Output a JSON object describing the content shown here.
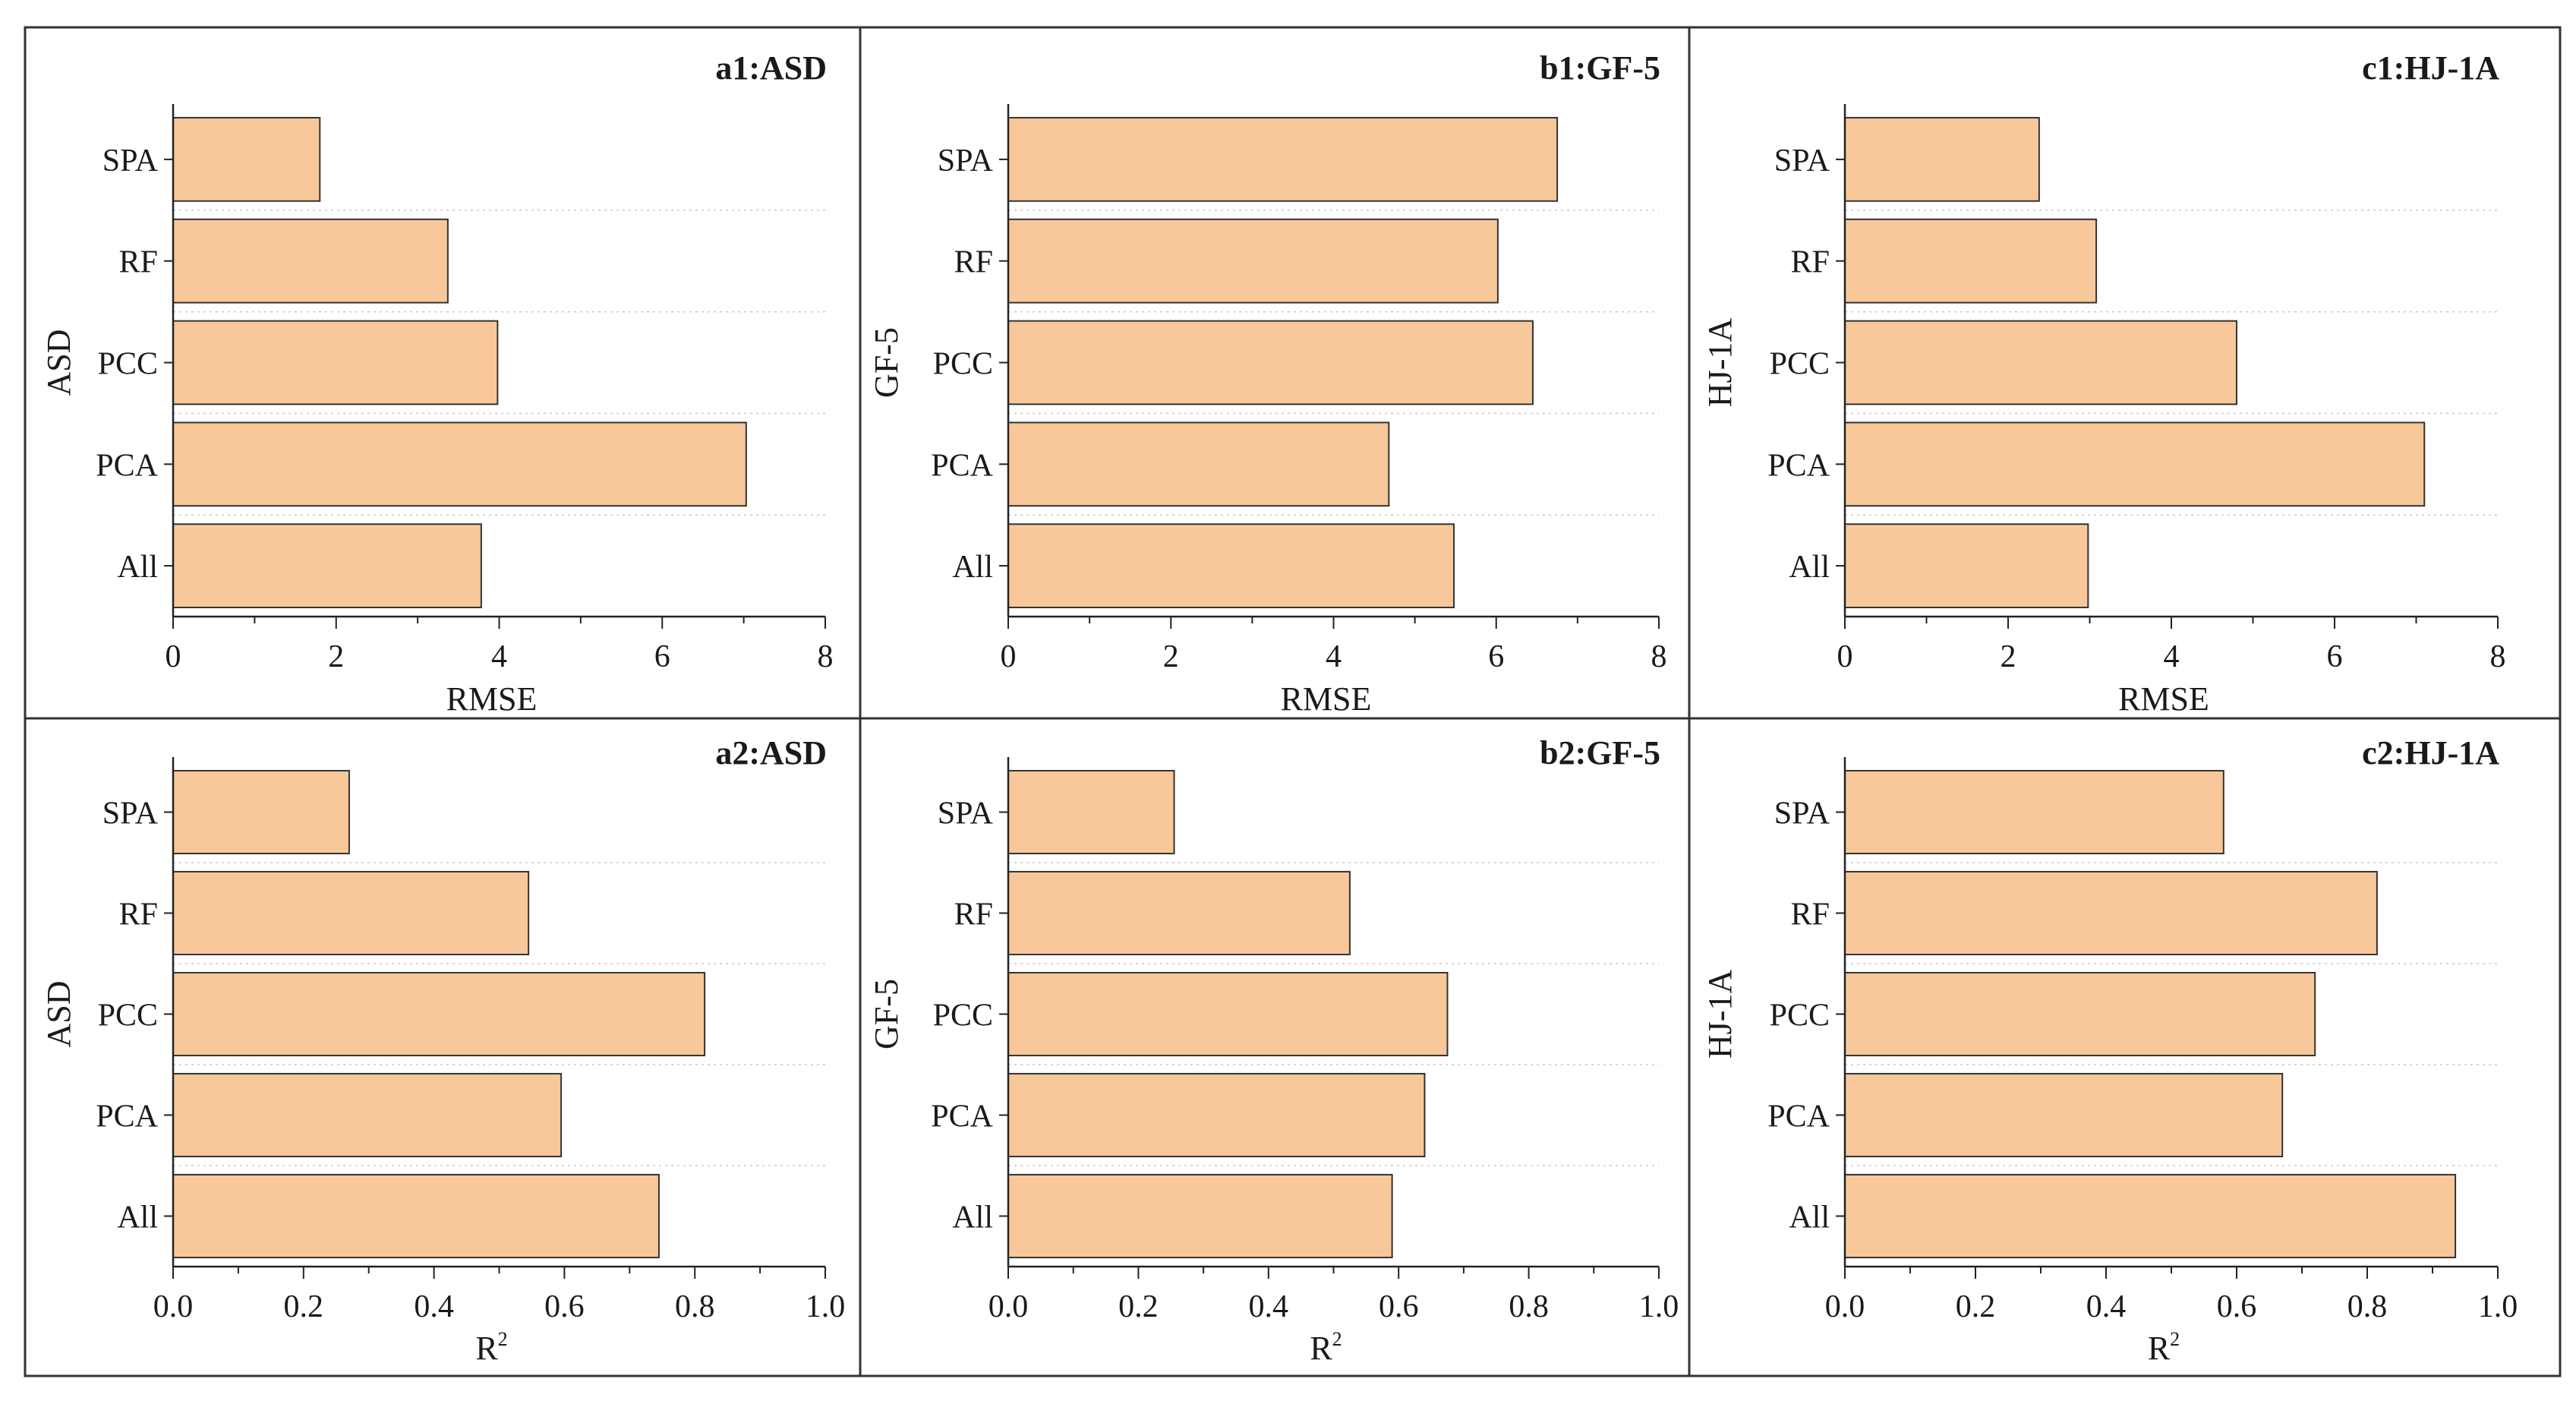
{
  "figure": {
    "bar_color": "#F8C89A",
    "bar_edge_color": "#333333",
    "frame_color": "#333333"
  },
  "chart_data": [
    {
      "id": "a1",
      "type": "bar",
      "orientation": "horizontal",
      "title": "a1:ASD",
      "xlabel": "RMSE",
      "ylabel": "ASD",
      "categories": [
        "SPA",
        "RF",
        "PCC",
        "PCA",
        "All"
      ],
      "values": [
        1.8,
        3.37,
        3.98,
        7.03,
        3.78
      ],
      "xlim": [
        0,
        8
      ],
      "xticks": [
        "0",
        "2",
        "4",
        "6",
        "8"
      ]
    },
    {
      "id": "b1",
      "type": "bar",
      "orientation": "horizontal",
      "title": "b1:GF-5",
      "xlabel": "RMSE",
      "ylabel": "GF-5",
      "categories": [
        "SPA",
        "RF",
        "PCC",
        "PCA",
        "All"
      ],
      "values": [
        6.75,
        6.02,
        6.45,
        4.68,
        5.48
      ],
      "xlim": [
        0,
        8
      ],
      "xticks": [
        "0",
        "2",
        "4",
        "6",
        "8"
      ]
    },
    {
      "id": "c1",
      "type": "bar",
      "orientation": "horizontal",
      "title": "c1:HJ-1A",
      "xlabel": "RMSE",
      "ylabel": "HJ-1A",
      "categories": [
        "SPA",
        "RF",
        "PCC",
        "PCA",
        "All"
      ],
      "values": [
        2.38,
        3.08,
        4.8,
        7.1,
        2.98
      ],
      "xlim": [
        0,
        8
      ],
      "xticks": [
        "0",
        "2",
        "4",
        "6",
        "8"
      ]
    },
    {
      "id": "a2",
      "type": "bar",
      "orientation": "horizontal",
      "title": "a2:ASD",
      "xlabel": "R",
      "xlabel_sup": "2",
      "ylabel": "ASD",
      "categories": [
        "SPA",
        "RF",
        "PCC",
        "PCA",
        "All"
      ],
      "values": [
        0.27,
        0.545,
        0.815,
        0.595,
        0.745
      ],
      "xlim": [
        0,
        1
      ],
      "xticks": [
        "0.0",
        "0.2",
        "0.4",
        "0.6",
        "0.8",
        "1.0"
      ]
    },
    {
      "id": "b2",
      "type": "bar",
      "orientation": "horizontal",
      "title": "b2:GF-5",
      "xlabel": "R",
      "xlabel_sup": "2",
      "ylabel": "GF-5",
      "categories": [
        "SPA",
        "RF",
        "PCC",
        "PCA",
        "All"
      ],
      "values": [
        0.255,
        0.525,
        0.675,
        0.64,
        0.59
      ],
      "xlim": [
        0,
        1
      ],
      "xticks": [
        "0.0",
        "0.2",
        "0.4",
        "0.6",
        "0.8",
        "1.0"
      ]
    },
    {
      "id": "c2",
      "type": "bar",
      "orientation": "horizontal",
      "title": "c2:HJ-1A",
      "xlabel": "R",
      "xlabel_sup": "2",
      "ylabel": "HJ-1A",
      "categories": [
        "SPA",
        "RF",
        "PCC",
        "PCA",
        "All"
      ],
      "values": [
        0.58,
        0.815,
        0.72,
        0.67,
        0.935
      ],
      "xlim": [
        0,
        1
      ],
      "xticks": [
        "0.0",
        "0.2",
        "0.4",
        "0.6",
        "0.8",
        "1.0"
      ]
    }
  ]
}
